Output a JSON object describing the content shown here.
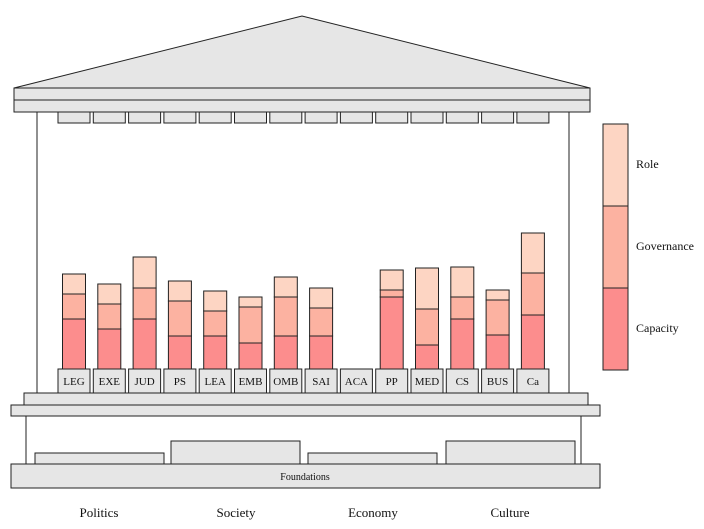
{
  "colors": {
    "capacity": "#fc8d8d",
    "governance": "#fcb2a1",
    "role": "#fdd5c3",
    "structure_fill": "#e6e6e6",
    "stroke": "#222222"
  },
  "legend": {
    "role": "Role",
    "governance": "Governance",
    "capacity": "Capacity"
  },
  "foundations_label": "Foundations",
  "foundation_labels": [
    "Politics",
    "Society",
    "Economy",
    "Culture"
  ],
  "chart_data": {
    "type": "bar",
    "stacked": true,
    "categories": [
      "LEG",
      "EXE",
      "JUD",
      "PS",
      "LEA",
      "EMB",
      "OMB",
      "SAI",
      "ACA",
      "PP",
      "MED",
      "CS",
      "BUS",
      "Ca"
    ],
    "series": [
      {
        "name": "Capacity",
        "values": [
          50,
          40,
          50,
          33,
          33,
          26,
          33,
          33,
          0,
          72,
          24,
          50,
          34,
          54
        ]
      },
      {
        "name": "Governance",
        "values": [
          25,
          25,
          31,
          35,
          25,
          36,
          39,
          28,
          0,
          7,
          36,
          22,
          35,
          42
        ]
      },
      {
        "name": "Role",
        "values": [
          20,
          20,
          31,
          20,
          20,
          10,
          20,
          20,
          0,
          20,
          41,
          30,
          10,
          40
        ]
      }
    ],
    "legend_position": "right"
  }
}
